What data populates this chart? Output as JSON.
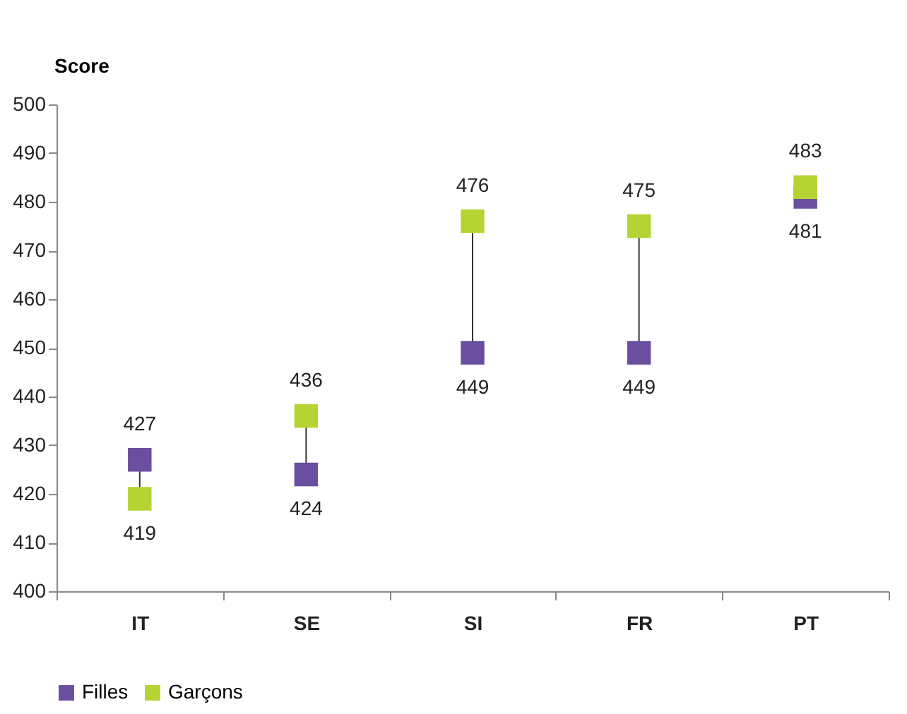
{
  "chart_data": {
    "type": "scatter",
    "ylabel": "Score",
    "categories": [
      "IT",
      "SE",
      "SI",
      "FR",
      "PT"
    ],
    "series": [
      {
        "name": "Filles",
        "color": "#6a4ea0",
        "values": [
          427,
          424,
          449,
          449,
          481
        ]
      },
      {
        "name": "Garçons",
        "color": "#b6d334",
        "values": [
          419,
          436,
          476,
          475,
          483
        ]
      }
    ],
    "ylim": [
      400,
      500
    ],
    "yticks": [
      400,
      410,
      420,
      430,
      440,
      450,
      460,
      470,
      480,
      490,
      500
    ],
    "marker": "square",
    "data_labels": true,
    "grid": false,
    "legend": "bottom"
  }
}
